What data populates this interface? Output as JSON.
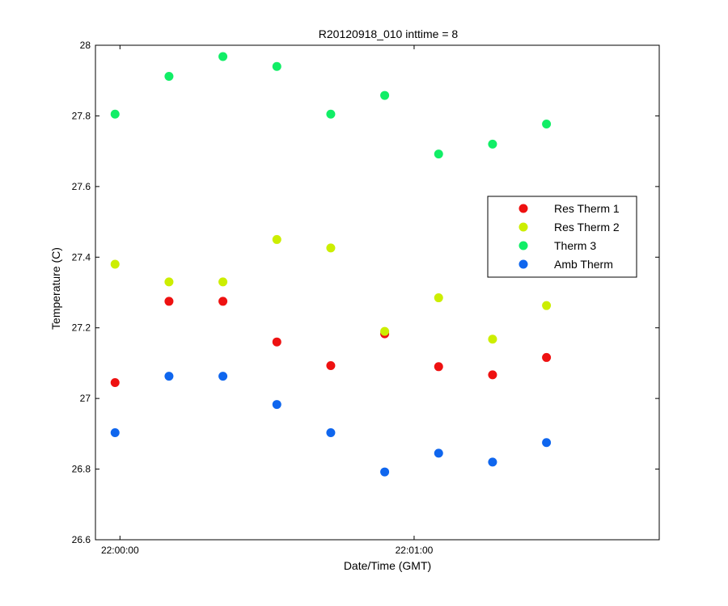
{
  "chart_data": {
    "type": "scatter",
    "title": "R20120918_010 inttime = 8",
    "xlabel": "Date/Time (GMT)",
    "ylabel": "Temperature (C)",
    "xlim": [
      "21:59:55",
      "22:01:50"
    ],
    "ylim": [
      26.6,
      28
    ],
    "x_ticks": [
      {
        "time": "22:00:00",
        "label": "22:00:00"
      },
      {
        "time": "22:01:00",
        "label": "22:01:00"
      }
    ],
    "y_ticks": [
      26.6,
      26.8,
      27,
      27.2,
      27.4,
      27.6,
      27.8,
      28
    ],
    "y_tick_labels": [
      "26.6",
      "26.8",
      "27",
      "27.2",
      "27.4",
      "27.6",
      "27.8",
      "28"
    ],
    "grid": false,
    "legend_position": "right",
    "x": [
      "21:59:59.0",
      "22:00:10.0",
      "22:00:21.0",
      "22:00:32.0",
      "22:00:43.0",
      "22:00:54.0",
      "22:01:05.0",
      "22:01:16.0",
      "22:01:27.0"
    ],
    "series": [
      {
        "name": "Res Therm 1",
        "color": "#ee1111",
        "values": [
          27.045,
          27.275,
          27.275,
          27.16,
          27.093,
          27.183,
          27.09,
          27.067,
          27.116
        ]
      },
      {
        "name": "Res Therm 2",
        "color": "#ccee00",
        "values": [
          27.38,
          27.33,
          27.33,
          27.45,
          27.426,
          27.19,
          27.285,
          27.168,
          27.263
        ]
      },
      {
        "name": "Therm 3",
        "color": "#11ee66",
        "values": [
          27.805,
          27.912,
          27.968,
          27.94,
          27.805,
          27.858,
          27.692,
          27.72,
          27.777
        ]
      },
      {
        "name": "Amb Therm",
        "color": "#0f66ee",
        "values": [
          26.903,
          27.063,
          27.063,
          26.983,
          26.903,
          26.792,
          26.845,
          26.82,
          26.875
        ]
      }
    ]
  }
}
